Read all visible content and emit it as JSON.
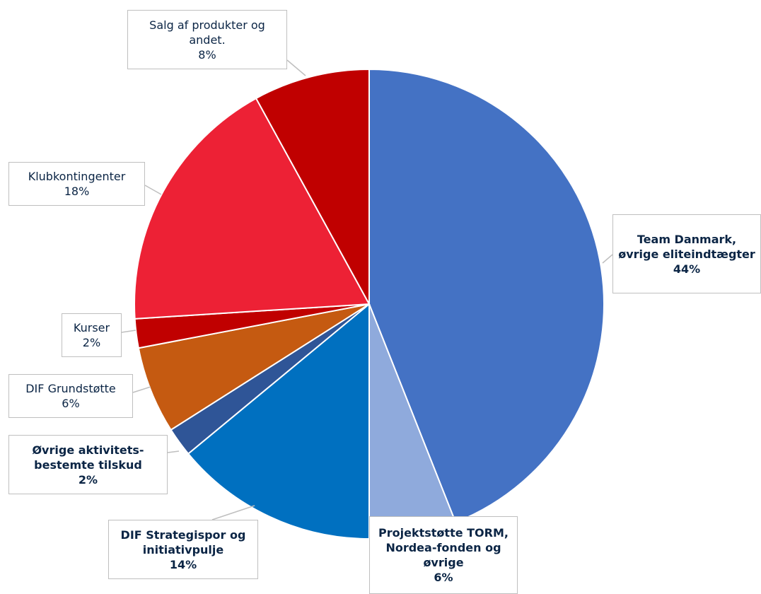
{
  "chart_data": {
    "type": "pie",
    "categories": [
      "Team Danmark, øvrige eliteindtægter",
      "Projektstøtte TORM, Nordea-fonden og øvrige",
      "DIF Strategispor og initiativpulje",
      "Øvrige aktivitets-bestemte tilskud",
      "DIF Grundstøtte",
      "Kurser",
      "Klubkontingenter",
      "Salg af produkter og andet."
    ],
    "values": [
      44,
      6,
      14,
      2,
      6,
      2,
      18,
      8
    ],
    "value_labels": [
      "44%",
      "6%",
      "14%",
      "2%",
      "6%",
      "2%",
      "18%",
      "8%"
    ],
    "colors": [
      "#4472c4",
      "#8faadc",
      "#0070c0",
      "#2f5597",
      "#c55a11",
      "#c00000",
      "#ed2135",
      "#c00000"
    ]
  }
}
